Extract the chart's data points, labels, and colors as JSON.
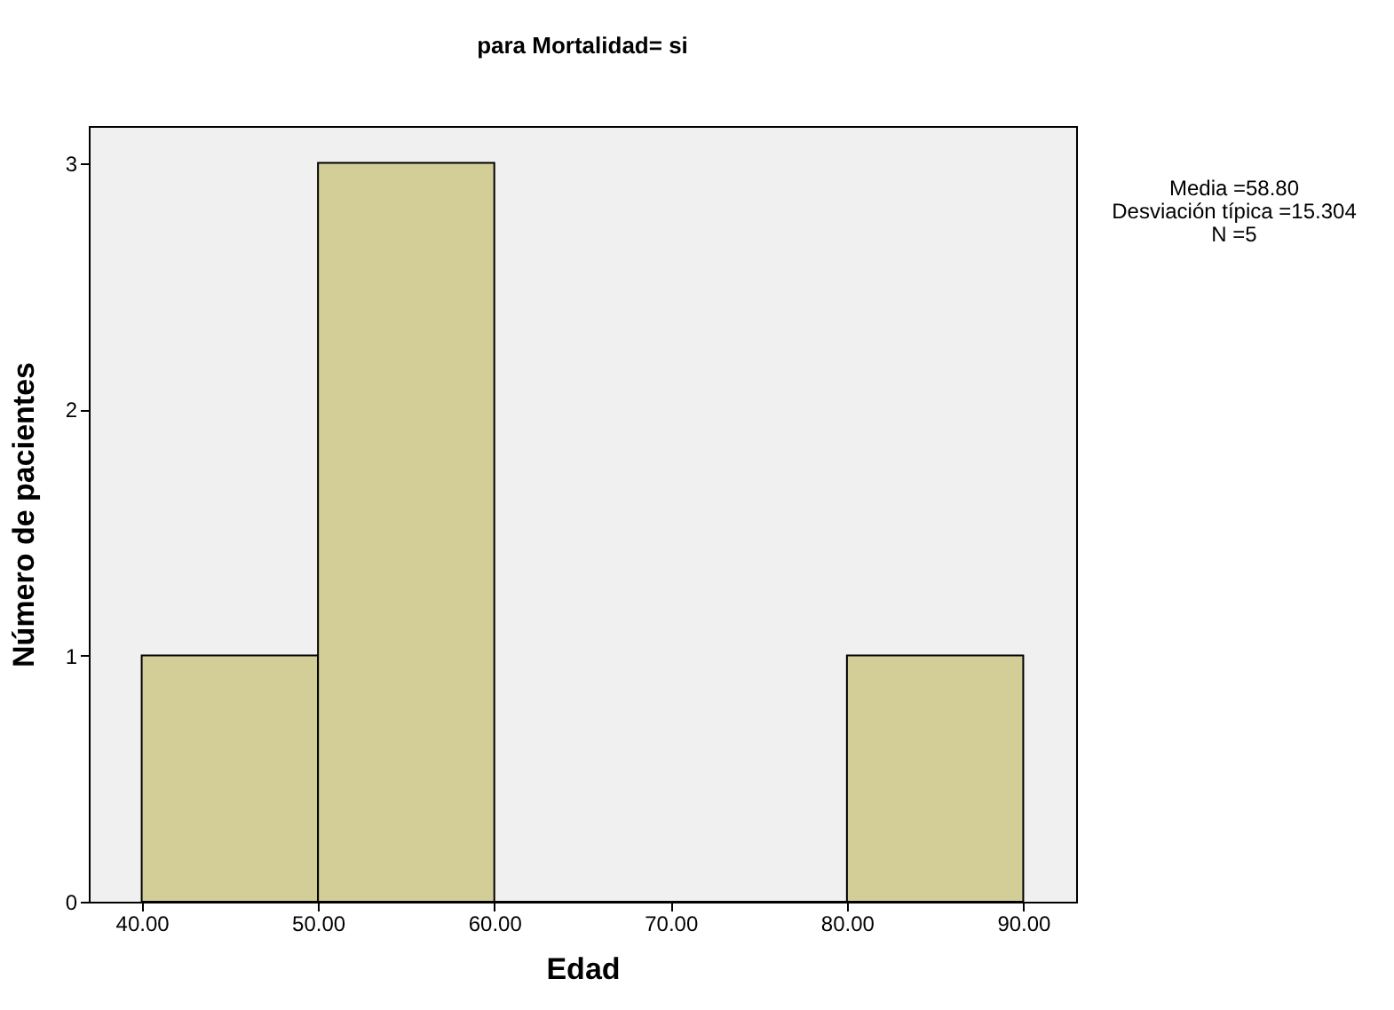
{
  "chart_data": {
    "type": "histogram",
    "title": "para Mortalidad= si",
    "xlabel": "Edad",
    "ylabel": "Número de pacientes",
    "bins": [
      40,
      50,
      60,
      70,
      80,
      90
    ],
    "values": [
      1,
      3,
      0,
      0,
      1
    ],
    "color": "#d3ce97",
    "xlim": [
      37,
      93
    ],
    "ylim": [
      0,
      3.15
    ],
    "xticks": [
      {
        "value": 40,
        "label": "40.00"
      },
      {
        "value": 50,
        "label": "50.00"
      },
      {
        "value": 60,
        "label": "60.00"
      },
      {
        "value": 70,
        "label": "70.00"
      },
      {
        "value": 80,
        "label": "80.00"
      },
      {
        "value": 90,
        "label": "90.00"
      }
    ],
    "yticks": [
      0,
      1,
      2,
      3
    ],
    "grid": false,
    "annotations": [
      "Media =58.80",
      "Desviación típica =15.304",
      "N =5"
    ]
  }
}
